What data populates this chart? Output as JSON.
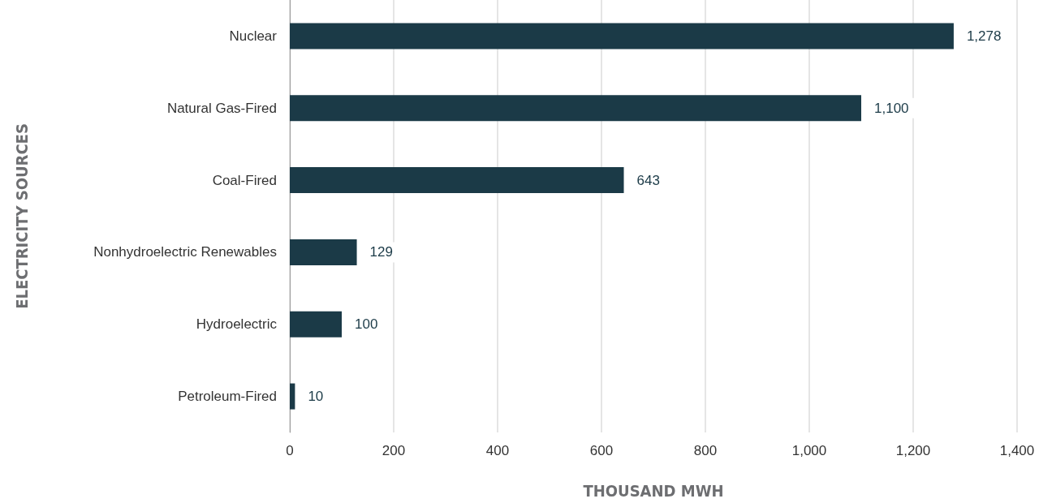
{
  "chart_data": {
    "type": "bar",
    "orientation": "horizontal",
    "xlabel": "THOUSAND MWH",
    "ylabel": "ELECTRICITY SOURCES",
    "categories": [
      "Nuclear",
      "Natural Gas-Fired",
      "Coal-Fired",
      "Nonhydroelectric Renewables",
      "Hydroelectric",
      "Petroleum-Fired"
    ],
    "values": [
      1278,
      1100,
      643,
      129,
      100,
      10
    ],
    "value_labels": [
      "1,278",
      "1,100",
      "643",
      "129",
      "100",
      "10"
    ],
    "color": "#1b3a47",
    "xlim": [
      0,
      1400
    ],
    "xticks": [
      0,
      200,
      400,
      600,
      800,
      {
        "value": 1000,
        "label": "1,000"
      },
      {
        "value": 1200,
        "label": "1,200"
      },
      {
        "value": 1400,
        "label": "1,400"
      }
    ],
    "grid": "x"
  }
}
